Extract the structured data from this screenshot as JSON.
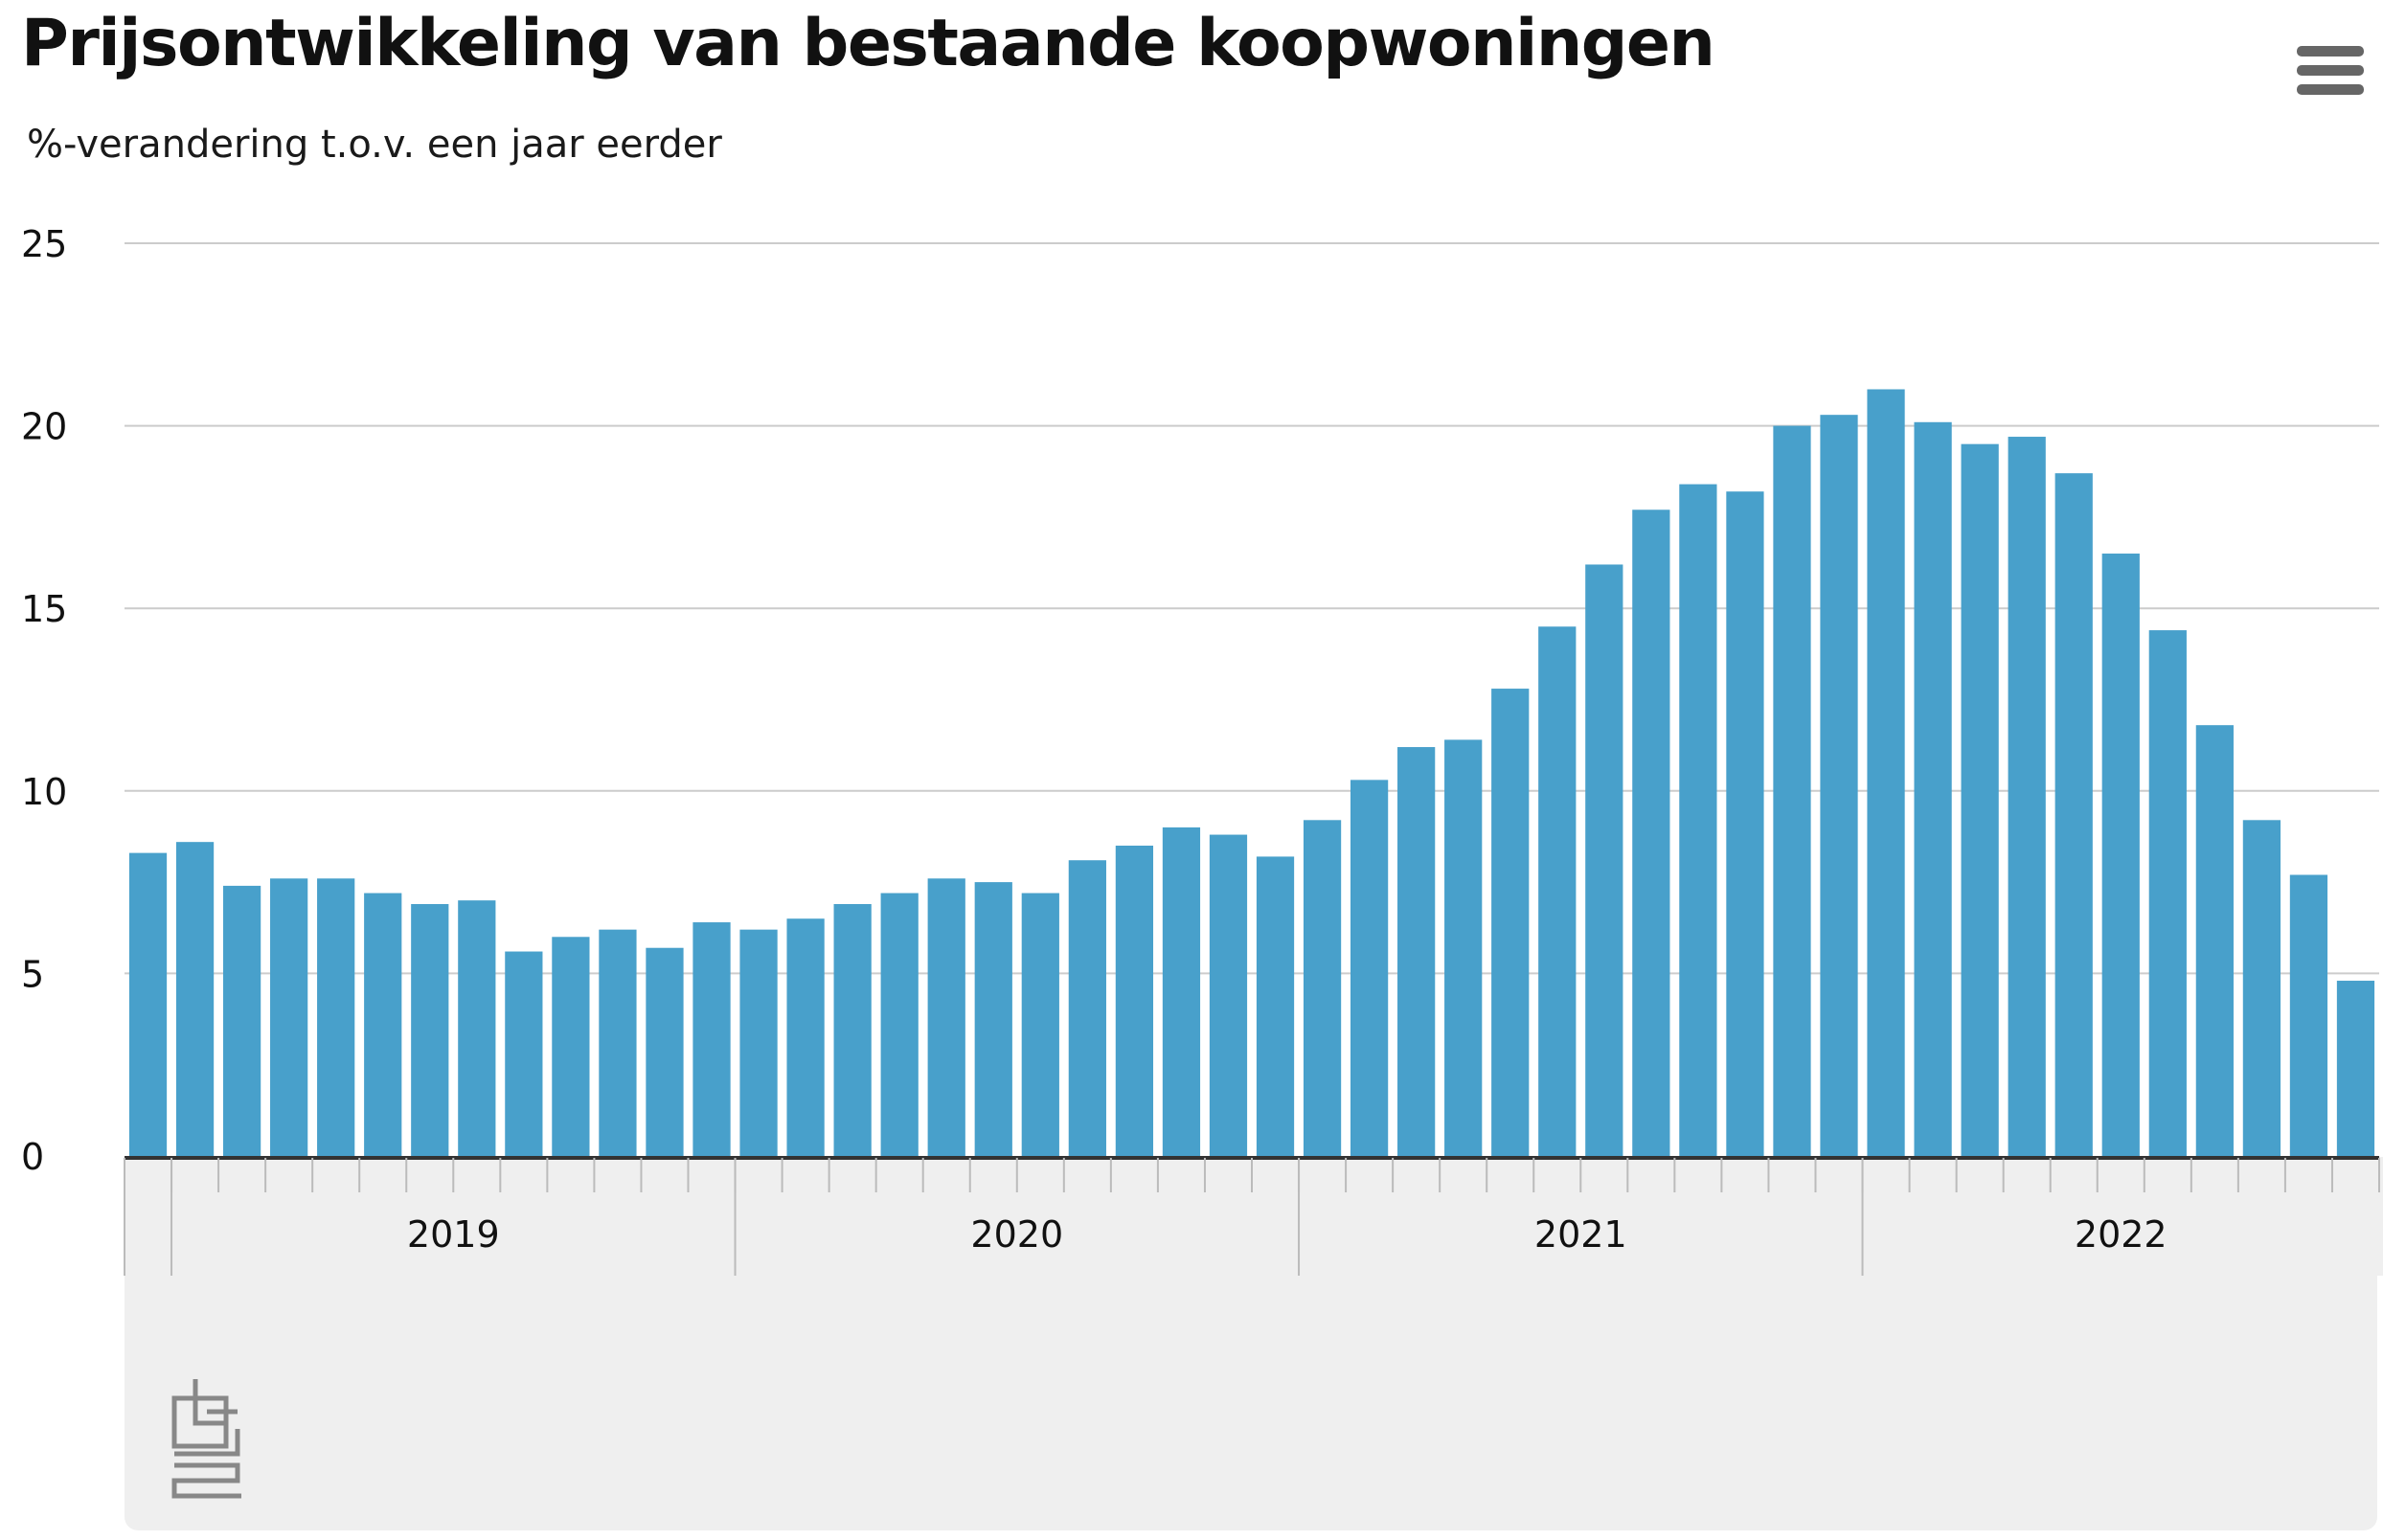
{
  "chart_data": {
    "type": "bar",
    "title": "Prijsontwikkeling van bestaande koopwoningen",
    "subtitle": "%-verandering t.o.v. een jaar eerder",
    "xlabel": "",
    "ylabel": "",
    "ylim": [
      0,
      25
    ],
    "yticks": [
      0,
      5,
      10,
      15,
      20,
      25
    ],
    "grid": true,
    "legend": "none",
    "bar_color": "#48a0cb",
    "year_labels": [
      "2019",
      "2020",
      "2021",
      "2022"
    ],
    "categories": [
      "2018-12",
      "2019-01",
      "2019-02",
      "2019-03",
      "2019-04",
      "2019-05",
      "2019-06",
      "2019-07",
      "2019-08",
      "2019-09",
      "2019-10",
      "2019-11",
      "2019-12",
      "2020-01",
      "2020-02",
      "2020-03",
      "2020-04",
      "2020-05",
      "2020-06",
      "2020-07",
      "2020-08",
      "2020-09",
      "2020-10",
      "2020-11",
      "2020-12",
      "2021-01",
      "2021-02",
      "2021-03",
      "2021-04",
      "2021-05",
      "2021-06",
      "2021-07",
      "2021-08",
      "2021-09",
      "2021-10",
      "2021-11",
      "2021-12",
      "2022-01",
      "2022-02",
      "2022-03",
      "2022-04",
      "2022-05",
      "2022-06",
      "2022-07",
      "2022-08",
      "2022-09",
      "2022-10",
      "2022-11"
    ],
    "values": [
      8.3,
      8.6,
      7.4,
      7.6,
      7.6,
      7.2,
      6.9,
      7.0,
      5.6,
      6.0,
      6.2,
      5.7,
      6.4,
      6.2,
      6.5,
      6.9,
      7.2,
      7.6,
      7.5,
      7.2,
      8.1,
      8.5,
      9.0,
      8.8,
      8.2,
      9.2,
      10.3,
      11.2,
      11.4,
      12.8,
      14.5,
      16.2,
      17.7,
      18.4,
      18.2,
      20.0,
      20.3,
      21.0,
      20.1,
      19.5,
      19.7,
      18.7,
      16.5,
      14.4,
      11.8,
      9.2,
      7.7,
      4.8
    ]
  },
  "colors": {
    "bar": "#48a0cb",
    "grid": "#cccccc",
    "axis": "#333333",
    "footer_bg": "#efefef"
  },
  "icons": {
    "menu": "hamburger-menu-icon",
    "logo": "cbs-logo"
  }
}
